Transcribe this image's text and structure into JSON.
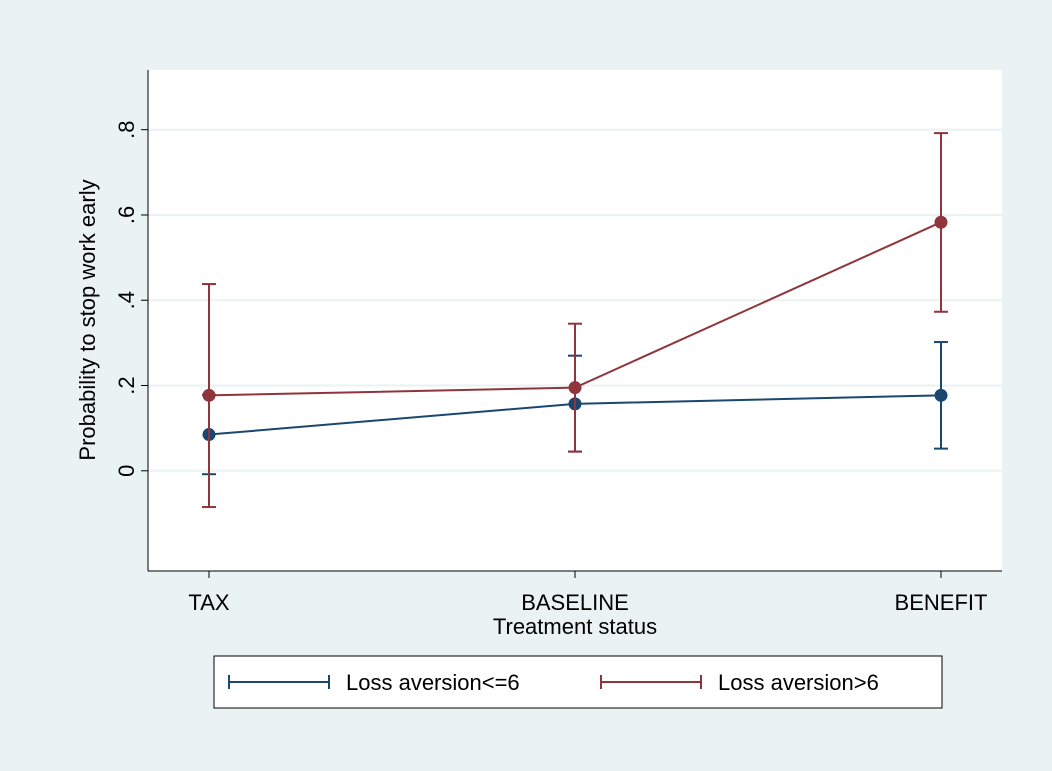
{
  "colors": {
    "outer_bg": "#eaf2f3",
    "plot_bg": "#ffffff",
    "grid": "#eaf2f3",
    "series1": "#1a476f",
    "series2": "#90353b"
  },
  "chart_data": {
    "type": "line",
    "categories": [
      "TAX",
      "BASELINE",
      "BENEFIT"
    ],
    "xlabel": "Treatment status",
    "ylabel": "Probability to stop work early",
    "ylim": [
      -0.235,
      0.94
    ],
    "yticks": [
      0,
      0.2,
      0.4,
      0.6,
      0.8
    ],
    "ytick_labels": [
      "0",
      ".2",
      ".4",
      ".6",
      ".8"
    ],
    "grid": true,
    "legend_position": "bottom",
    "series": [
      {
        "name": "Loss aversion<=6",
        "values": [
          0.085,
          0.157,
          0.177
        ],
        "lower": [
          -0.008,
          0.045,
          0.052
        ],
        "upper": [
          0.178,
          0.27,
          0.302
        ]
      },
      {
        "name": "Loss aversion>6",
        "values": [
          0.177,
          0.195,
          0.583
        ],
        "lower": [
          -0.085,
          0.045,
          0.373
        ],
        "upper": [
          0.438,
          0.345,
          0.792
        ]
      }
    ]
  }
}
